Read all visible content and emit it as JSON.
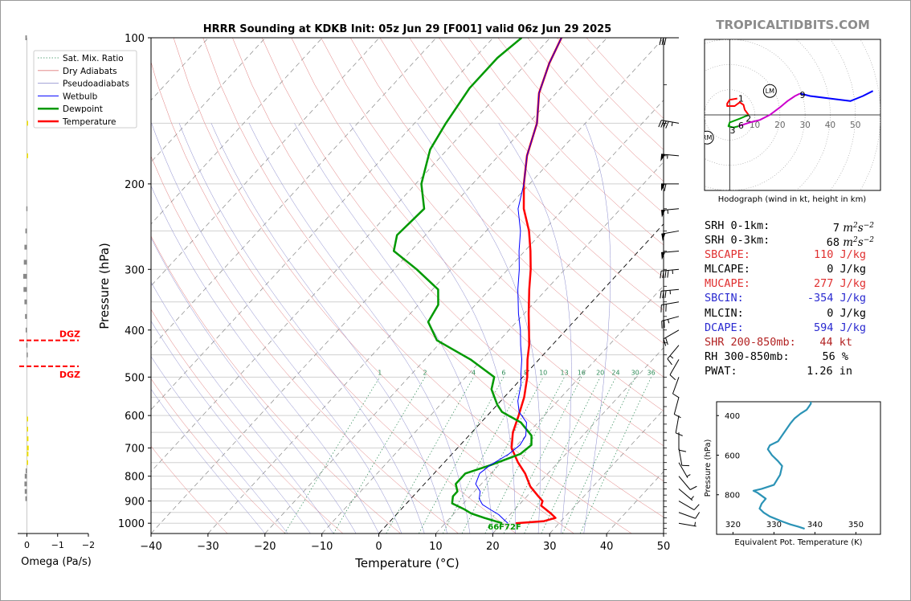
{
  "header": {
    "title": "HRRR Sounding at KDKB Init: 05z Jun 29 [F001] valid 06z Jun 29 2025",
    "brand": "TROPICALTIDBITS.COM"
  },
  "legend": [
    {
      "label": "Sat. Mix. Ratio",
      "color": "#2e8b57",
      "style": "dotted"
    },
    {
      "label": "Dry Adiabats",
      "color": "#e07a7a",
      "style": "solid-thin"
    },
    {
      "label": "Pseudoadiabats",
      "color": "#8888cc",
      "style": "solid-thin"
    },
    {
      "label": "Wetbulb",
      "color": "#0000ff",
      "style": "solid"
    },
    {
      "label": "Dewpoint",
      "color": "#009900",
      "style": "solid-thick"
    },
    {
      "label": "Temperature",
      "color": "#ff0000",
      "style": "solid-thick"
    }
  ],
  "skewt": {
    "xlabel": "Temperature (°C)",
    "ylabel": "Pressure (hPa)",
    "surface_label": "66F72F",
    "omega_label": "Omega (Pa/s)",
    "dgz_label": "DGZ"
  },
  "hodograph": {
    "caption": "Hodograph (wind in kt, height in km)",
    "ring_labels": [
      "10",
      "20",
      "30",
      "40",
      "50"
    ],
    "height_marks": [
      "1",
      "2",
      "3",
      "6",
      "9"
    ],
    "lm_label": "LM",
    "rm_label": "RM"
  },
  "params": [
    {
      "label": "SRH 0-1km:",
      "value": "7",
      "unit": "m2s-2",
      "color": "#000000"
    },
    {
      "label": "SRH 0-3km:",
      "value": "68",
      "unit": "m2s-2",
      "color": "#000000"
    },
    {
      "label": "SBCAPE:",
      "value": "110 J/kg",
      "color": "#e03030"
    },
    {
      "label": "MLCAPE:",
      "value": "0 J/kg",
      "color": "#000000"
    },
    {
      "label": "MUCAPE:",
      "value": "277 J/kg",
      "color": "#e03030"
    },
    {
      "label": "SBCIN:",
      "value": "-354 J/kg",
      "color": "#2a2ad0"
    },
    {
      "label": "MLCIN:",
      "value": "0 J/kg",
      "color": "#000000"
    },
    {
      "label": "DCAPE:",
      "value": "594 J/kg",
      "color": "#2a2ad0"
    },
    {
      "label": "SHR 200-850mb:",
      "value": "44 kt",
      "color": "#b22222"
    },
    {
      "label": "RH 300-850mb:",
      "value": "56 %",
      "color": "#000000"
    },
    {
      "label": "PWAT:",
      "value": "1.26 in",
      "color": "#000000"
    }
  ],
  "chart_data": [
    {
      "type": "line",
      "title": "HRRR Sounding at KDKB Init: 05z Jun 29 [F001] valid 06z Jun 29 2025",
      "xlabel": "Temperature (°C)",
      "ylabel": "Pressure (hPa)",
      "xlim": [
        -40,
        50
      ],
      "ylim": [
        1050,
        100
      ],
      "y_scale": "log",
      "x_ticks": [
        "−40",
        "−30",
        "−20",
        "−10",
        "0",
        "10",
        "20",
        "30",
        "40",
        "50"
      ],
      "y_ticks": [
        "100",
        "200",
        "300",
        "400",
        "500",
        "600",
        "700",
        "800",
        "900",
        "1000"
      ],
      "mixing_ratio_labels": [
        "1",
        "2",
        "4",
        "6",
        "8",
        "10",
        "13",
        "16",
        "20",
        "24",
        "30",
        "36"
      ],
      "series": [
        {
          "name": "Temperature",
          "color": "#ff0000",
          "points": [
            [
              22.4,
              1000
            ],
            [
              27,
              990
            ],
            [
              28.5,
              975
            ],
            [
              27,
              955
            ],
            [
              24,
              920
            ],
            [
              23.5,
              900
            ],
            [
              22,
              880
            ],
            [
              19,
              840
            ],
            [
              16,
              790
            ],
            [
              13,
              750
            ],
            [
              9.5,
              700
            ],
            [
              7.2,
              650
            ],
            [
              5.5,
              600
            ],
            [
              3.5,
              550
            ],
            [
              0.8,
              500
            ],
            [
              -2,
              460
            ],
            [
              -4,
              430
            ],
            [
              -6.5,
              400
            ],
            [
              -9.2,
              370
            ],
            [
              -13,
              330
            ],
            [
              -16,
              300
            ],
            [
              -19,
              275
            ],
            [
              -22.5,
              250
            ],
            [
              -27,
              225
            ],
            [
              -31,
              200
            ],
            [
              -35,
              175
            ],
            [
              -38.5,
              150
            ],
            [
              -43,
              130
            ],
            [
              -46,
              113
            ],
            [
              -48,
              100
            ]
          ]
        },
        {
          "name": "Dewpoint",
          "color": "#009900",
          "points": [
            [
              20,
              1000
            ],
            [
              16,
              975
            ],
            [
              13,
              955
            ],
            [
              11,
              935
            ],
            [
              8,
              910
            ],
            [
              7,
              880
            ],
            [
              7,
              860
            ],
            [
              5.5,
              830
            ],
            [
              5.5,
              790
            ],
            [
              8.5,
              760
            ],
            [
              12,
              720
            ],
            [
              12.5,
              690
            ],
            [
              11,
              660
            ],
            [
              7,
              620
            ],
            [
              2,
              590
            ],
            [
              0,
              570
            ],
            [
              -3.5,
              530
            ],
            [
              -5,
              500
            ],
            [
              -12,
              460
            ],
            [
              -21,
              420
            ],
            [
              -25.5,
              385
            ],
            [
              -26.5,
              355
            ],
            [
              -29,
              330
            ],
            [
              -36,
              300
            ],
            [
              -43,
              275
            ],
            [
              -45,
              255
            ],
            [
              -44.5,
              225
            ],
            [
              -49,
              200
            ],
            [
              -53,
              170
            ],
            [
              -54.5,
              150
            ],
            [
              -56,
              127
            ],
            [
              -56,
              110
            ],
            [
              -55,
              100
            ]
          ]
        },
        {
          "name": "Wetbulb",
          "color": "#0000ff",
          "points": [
            [
              21,
              1000
            ],
            [
              19.5,
              980
            ],
            [
              18,
              960
            ],
            [
              16,
              940
            ],
            [
              13.5,
              915
            ],
            [
              12,
              890
            ],
            [
              11,
              860
            ],
            [
              9,
              830
            ],
            [
              8,
              790
            ],
            [
              8.5,
              760
            ],
            [
              10,
              720
            ],
            [
              10.5,
              690
            ],
            [
              10,
              660
            ],
            [
              8,
              620
            ],
            [
              5,
              590
            ],
            [
              3,
              560
            ],
            [
              1,
              520
            ],
            [
              -1,
              490
            ],
            [
              -3,
              460
            ],
            [
              -5.5,
              430
            ],
            [
              -8,
              400
            ],
            [
              -11,
              370
            ],
            [
              -15,
              330
            ],
            [
              -18,
              300
            ],
            [
              -21,
              275
            ],
            [
              -24,
              250
            ],
            [
              -28,
              225
            ],
            [
              -31,
              200
            ],
            [
              -35,
              175
            ],
            [
              -38.5,
              150
            ],
            [
              -43,
              130
            ],
            [
              -46,
              113
            ],
            [
              -48,
              100
            ]
          ]
        }
      ],
      "dgz": {
        "top_hpa": 420,
        "bottom_hpa": 475
      },
      "omega": {
        "xlabel": "Omega (Pa/s)",
        "xlim": [
          0.3,
          -2
        ],
        "x_ticks": [
          "0",
          "−1",
          "−2"
        ]
      },
      "wind_barbs": "plotted along the right edge at each pressure level"
    },
    {
      "type": "line",
      "title": "Hodograph (wind in kt, height in km)",
      "xlim": [
        -10,
        60
      ],
      "ylim": [
        -30,
        30
      ],
      "ring_labels": [
        "10",
        "20",
        "30",
        "40",
        "50"
      ],
      "height_labels": [
        "1",
        "2",
        "3",
        "6",
        "9"
      ],
      "segments": [
        {
          "color": "#ff0000",
          "points": [
            [
              3,
              6.5
            ],
            [
              0,
              6
            ],
            [
              -1,
              4.5
            ],
            [
              -1,
              3.5
            ],
            [
              2,
              3.5
            ],
            [
              4,
              5
            ],
            [
              5.5,
              4
            ],
            [
              6,
              2
            ],
            [
              7.5,
              0
            ]
          ]
        },
        {
          "color": "#00a000",
          "points": [
            [
              7.5,
              0
            ],
            [
              4,
              -1.5
            ],
            [
              0,
              -3
            ],
            [
              -0.5,
              -4.5
            ],
            [
              1.5,
              -5
            ],
            [
              3.5,
              -4.5
            ]
          ]
        },
        {
          "color": "#cc00cc",
          "points": [
            [
              3.5,
              -4.5
            ],
            [
              8,
              -3
            ],
            [
              12,
              -2
            ],
            [
              16,
              0
            ],
            [
              20,
              3
            ],
            [
              23,
              5.5
            ],
            [
              26,
              7.5
            ],
            [
              28,
              8.5
            ]
          ]
        },
        {
          "color": "#0000ff",
          "points": [
            [
              28,
              8.5
            ],
            [
              32,
              7.5
            ],
            [
              40,
              6.5
            ],
            [
              48,
              5.5
            ],
            [
              53,
              7.5
            ],
            [
              57,
              9.5
            ]
          ]
        }
      ],
      "storm_motion": {
        "LM": [
          16,
          9.5
        ],
        "RM": [
          -9,
          -9
        ]
      }
    },
    {
      "type": "line",
      "xlabel": "Equivalent Pot. Temperature (K)",
      "ylabel": "Pressure (hPa)",
      "xlim": [
        316,
        356
      ],
      "ylim": [
        1000,
        330
      ],
      "x_ticks": [
        "320",
        "330",
        "340",
        "350"
      ],
      "y_ticks": [
        "400",
        "600",
        "800"
      ],
      "series": [
        {
          "name": "theta-e",
          "color": "#2b93b6",
          "points": [
            [
              337.5,
              972
            ],
            [
              336,
              962
            ],
            [
              334,
              950
            ],
            [
              332,
              935
            ],
            [
              329,
              910
            ],
            [
              327.5,
              890
            ],
            [
              326.5,
              870
            ],
            [
              327,
              845
            ],
            [
              328,
              820
            ],
            [
              326,
              790
            ],
            [
              325,
              780
            ],
            [
              327,
              770
            ],
            [
              330,
              750
            ],
            [
              331.5,
              700
            ],
            [
              332,
              655
            ],
            [
              331,
              630
            ],
            [
              329.5,
              600
            ],
            [
              328.5,
              570
            ],
            [
              329,
              550
            ],
            [
              331,
              530
            ],
            [
              332,
              500
            ],
            [
              333,
              470
            ],
            [
              334,
              440
            ],
            [
              335,
              415
            ],
            [
              336.5,
              390
            ],
            [
              338,
              370
            ],
            [
              338.5,
              355
            ],
            [
              339,
              340
            ],
            [
              339,
              330
            ]
          ]
        }
      ]
    }
  ]
}
